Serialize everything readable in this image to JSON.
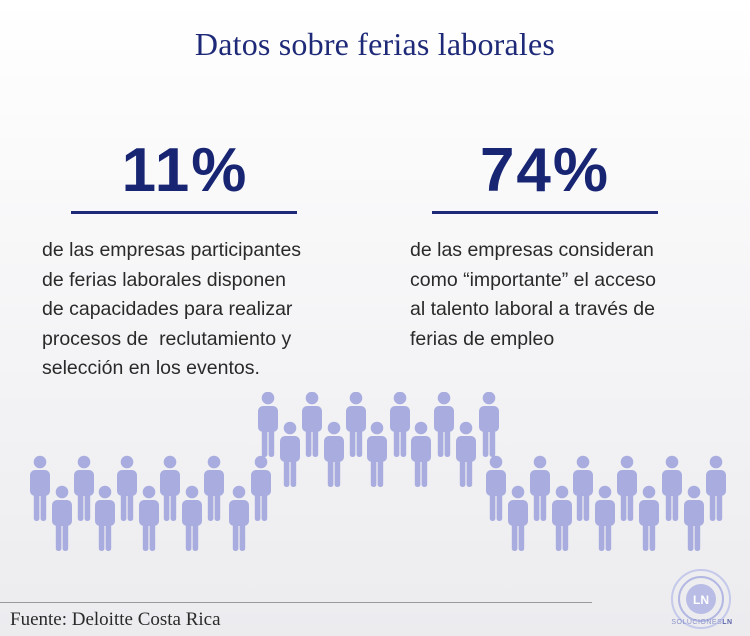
{
  "title": "Datos sobre ferias laborales",
  "stats": [
    {
      "value": "11%",
      "description": "de las empresas participantes\nde ferias laborales disponen\nde capacidades para realizar\nprocesos de  reclutamiento y\nselección en los eventos."
    },
    {
      "value": "74%",
      "description": "de las empresas consideran\ncomo “importante” el acceso\nal talento laboral a través de\nferias de empleo"
    }
  ],
  "source": "Fuente: Deloitte Costa Rica",
  "logo": {
    "monogram": "LN",
    "caption_light": "SOLUCIONES",
    "caption_bold": "LN"
  },
  "colors": {
    "title": "#1e2a78",
    "accent": "#182573",
    "people": "#a9acdf"
  },
  "icons": [
    "person-icon",
    "ln-logo-icon"
  ]
}
